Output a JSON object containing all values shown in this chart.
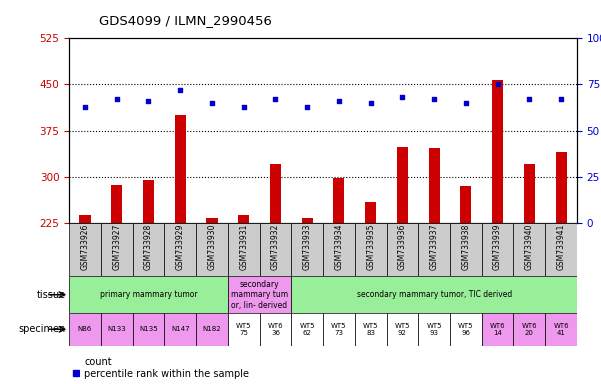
{
  "title": "GDS4099 / ILMN_2990456",
  "samples": [
    "GSM733926",
    "GSM733927",
    "GSM733928",
    "GSM733929",
    "GSM733930",
    "GSM733931",
    "GSM733932",
    "GSM733933",
    "GSM733934",
    "GSM733935",
    "GSM733936",
    "GSM733937",
    "GSM733938",
    "GSM733939",
    "GSM733940",
    "GSM733941"
  ],
  "counts": [
    237,
    287,
    295,
    400,
    232,
    237,
    320,
    232,
    298,
    258,
    348,
    347,
    285,
    458,
    320,
    340
  ],
  "percentiles": [
    63,
    67,
    66,
    72,
    65,
    63,
    67,
    63,
    66,
    65,
    68,
    67,
    65,
    75,
    67,
    67
  ],
  "ylim_left": [
    225,
    525
  ],
  "ylim_right": [
    0,
    100
  ],
  "yticks_left": [
    225,
    300,
    375,
    450,
    525
  ],
  "yticks_right": [
    0,
    25,
    50,
    75,
    100
  ],
  "bar_color": "#cc0000",
  "dot_color": "#0000cc",
  "tissue_groups": [
    {
      "label": "primary mammary tumor",
      "start": 0,
      "end": 5,
      "color": "#99ee99"
    },
    {
      "label": "secondary\nmammary tum\nor, lin- derived",
      "start": 5,
      "end": 7,
      "color": "#ee99ee"
    },
    {
      "label": "secondary mammary tumor, TIC derived",
      "start": 7,
      "end": 16,
      "color": "#99ee99"
    }
  ],
  "specimen_labels": [
    "N86",
    "N133",
    "N135",
    "N147",
    "N182",
    "WT5\n75",
    "WT6\n36",
    "WT5\n62",
    "WT5\n73",
    "WT5\n83",
    "WT5\n92",
    "WT5\n93",
    "WT5\n96",
    "WT6\n14",
    "WT6\n20",
    "WT6\n41"
  ],
  "specimen_colors": [
    "#ee99ee",
    "#ee99ee",
    "#ee99ee",
    "#ee99ee",
    "#ee99ee",
    "#ffffff",
    "#ffffff",
    "#ffffff",
    "#ffffff",
    "#ffffff",
    "#ffffff",
    "#ffffff",
    "#ffffff",
    "#ee99ee",
    "#ee99ee",
    "#ee99ee"
  ],
  "bg_color": "#ffffff",
  "left_tick_color": "#cc0000",
  "right_tick_color": "#0000cc",
  "xticklabel_bg": "#cccccc"
}
